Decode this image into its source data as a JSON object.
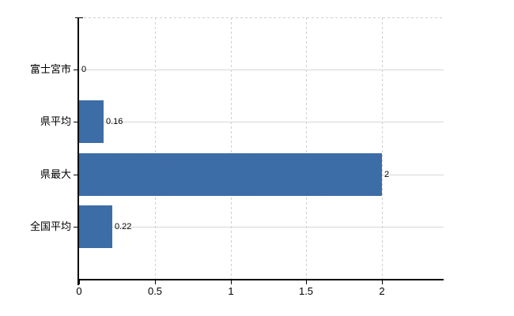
{
  "chart_data": {
    "type": "bar",
    "orientation": "horizontal",
    "title": "",
    "categories": [
      "富士宮市",
      "県平均",
      "県最大",
      "全国平均"
    ],
    "values": [
      0,
      0.16,
      2,
      0.22
    ],
    "value_labels": [
      "0",
      "0.16",
      "2",
      "0.22"
    ],
    "x_ticks": [
      {
        "value": 0,
        "label": "0"
      },
      {
        "value": 0.5,
        "label": "0.5"
      },
      {
        "value": 1,
        "label": "1"
      },
      {
        "value": 1.5,
        "label": "1.5"
      },
      {
        "value": 2,
        "label": "2"
      }
    ],
    "xlim": [
      0,
      2.41
    ],
    "grid": {
      "horizontal": "solid",
      "vertical": "dashed",
      "top_border": "dashed"
    },
    "legend": "none",
    "colors": {
      "bar_light": "#4b7ab6",
      "bar_dark": "#2f5f98",
      "grid": "#d6d6d6",
      "axis": "#000000",
      "text": "#000000",
      "background": "#ffffff"
    }
  }
}
